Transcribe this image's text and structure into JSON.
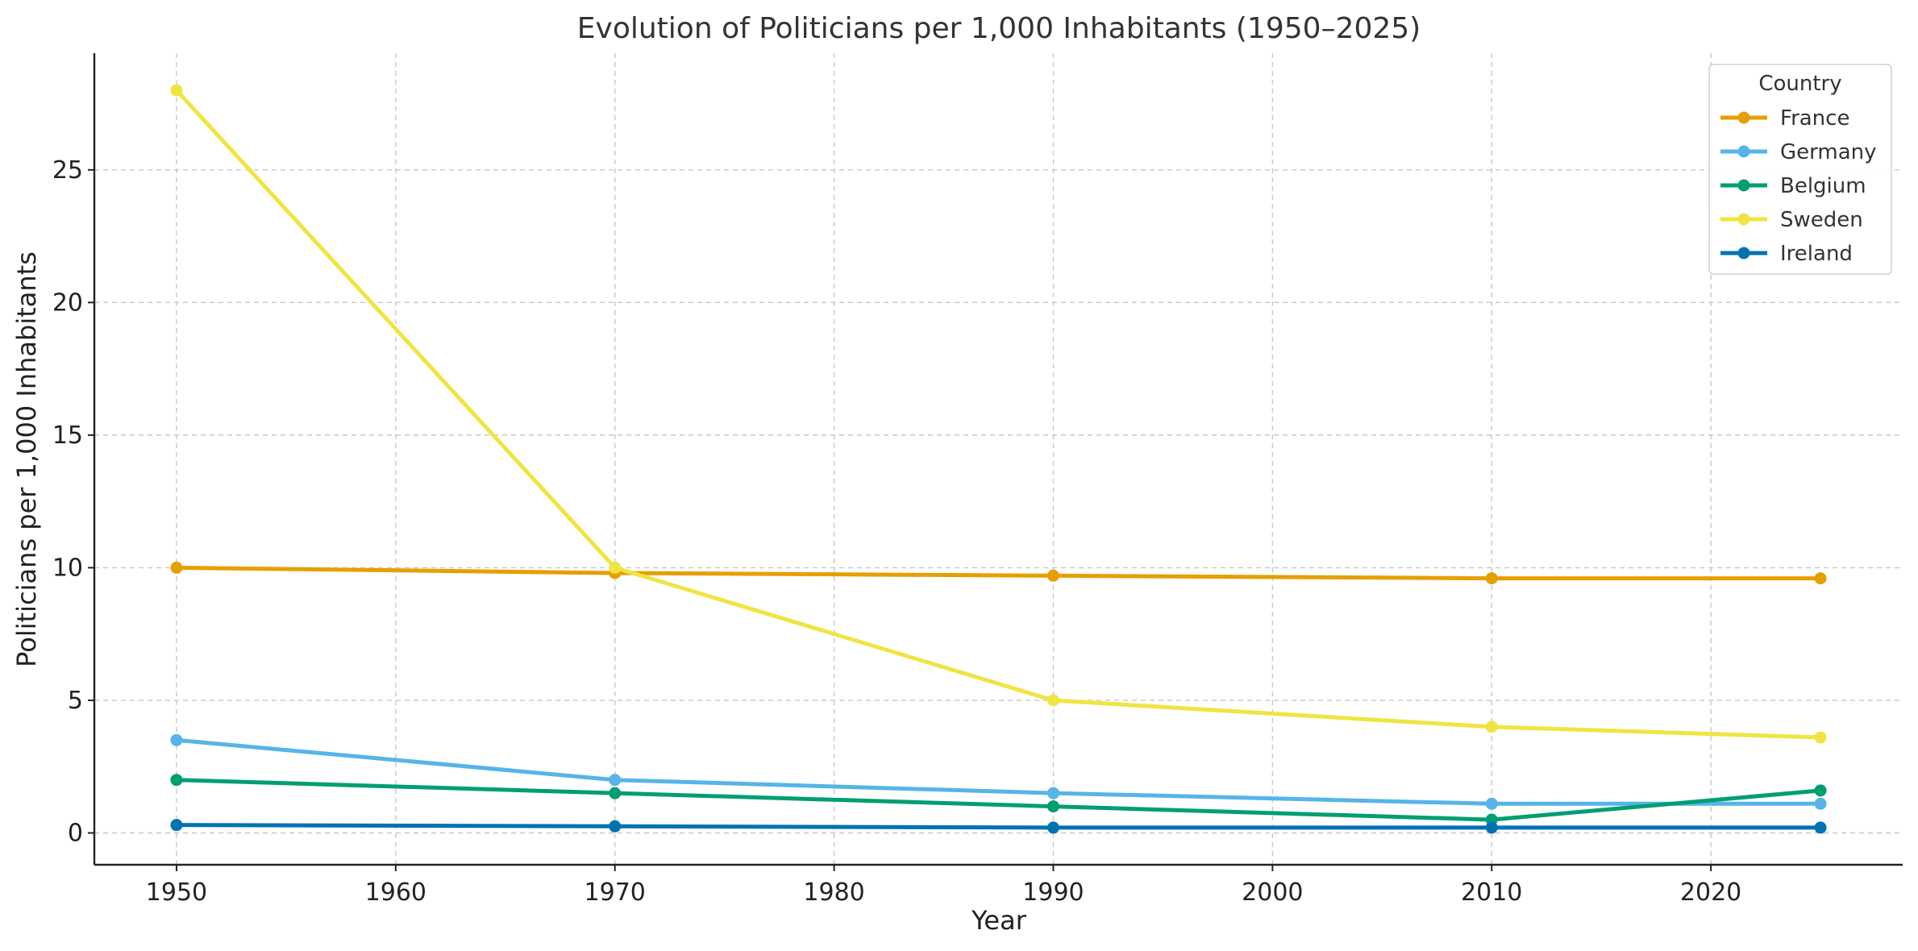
{
  "chart_data": {
    "type": "line",
    "title": "Evolution of Politicians per 1,000 Inhabitants (1950–2025)",
    "xlabel": "Year",
    "ylabel": "Politicians per 1,000 Inhabitants",
    "x": [
      1950,
      1970,
      1990,
      2010,
      2025
    ],
    "xlim": [
      1946.25,
      2028.75
    ],
    "ylim": [
      -1.2,
      29.4
    ],
    "xticks": [
      "1950",
      "1960",
      "1970",
      "1980",
      "1990",
      "2000",
      "2010",
      "2020"
    ],
    "yticks": [
      "0",
      "5",
      "10",
      "15",
      "20",
      "25"
    ],
    "grid": true,
    "legend": {
      "title": "Country",
      "placement": "top-right"
    },
    "series": [
      {
        "name": "France",
        "color": "#E69F00",
        "values": [
          10.0,
          9.8,
          9.7,
          9.6,
          9.6
        ]
      },
      {
        "name": "Germany",
        "color": "#56B4E9",
        "values": [
          3.5,
          2.0,
          1.5,
          1.1,
          1.1
        ]
      },
      {
        "name": "Belgium",
        "color": "#009E73",
        "values": [
          2.0,
          1.5,
          1.0,
          0.5,
          1.6
        ]
      },
      {
        "name": "Sweden",
        "color": "#F0E442",
        "values": [
          28.0,
          10.0,
          5.0,
          4.0,
          3.6
        ]
      },
      {
        "name": "Ireland",
        "color": "#0072B2",
        "values": [
          0.3,
          0.25,
          0.2,
          0.2,
          0.2
        ]
      }
    ]
  }
}
